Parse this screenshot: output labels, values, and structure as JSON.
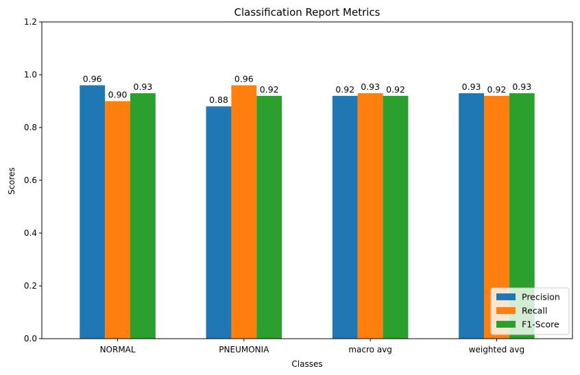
{
  "chart_data": {
    "type": "bar",
    "title": "Classification Report Metrics",
    "xlabel": "Classes",
    "ylabel": "Scores",
    "categories": [
      "NORMAL",
      "PNEUMONIA",
      "macro avg",
      "weighted avg"
    ],
    "series": [
      {
        "name": "Precision",
        "values": [
          0.96,
          0.88,
          0.92,
          0.93
        ],
        "labels": [
          "0.96",
          "0.88",
          "0.92",
          "0.93"
        ],
        "color": "#1f77b4"
      },
      {
        "name": "Recall",
        "values": [
          0.9,
          0.96,
          0.93,
          0.92
        ],
        "labels": [
          "0.90",
          "0.96",
          "0.93",
          "0.92"
        ],
        "color": "#ff7f0e"
      },
      {
        "name": "F1-Score",
        "values": [
          0.93,
          0.92,
          0.92,
          0.93
        ],
        "labels": [
          "0.93",
          "0.92",
          "0.92",
          "0.93"
        ],
        "color": "#2ca02c"
      }
    ],
    "ylim": [
      0,
      1.2
    ],
    "yticks": [
      "0.0",
      "0.2",
      "0.4",
      "0.6",
      "0.8",
      "1.0",
      "1.2"
    ],
    "grid": false,
    "legend_position": "lower-right"
  }
}
